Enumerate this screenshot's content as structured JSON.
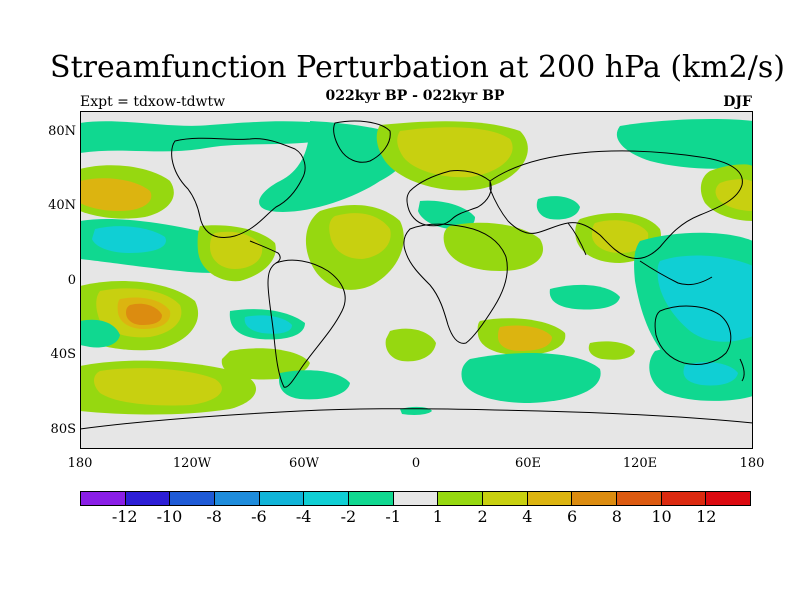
{
  "title": "Streamfunction Perturbation at 200 hPa (km2/s)",
  "subtitle": "022kyr BP - 022kyr BP",
  "experiment": "Expt = tdxow-tdwtw",
  "season": "DJF",
  "y_tick_labels": [
    "80N",
    "40N",
    "0",
    "40S",
    "80S"
  ],
  "x_tick_labels": [
    "180",
    "120W",
    "60W",
    "0",
    "60E",
    "120E",
    "180"
  ],
  "colorbar": {
    "labels": [
      "-12",
      "-10",
      "-8",
      "-6",
      "-4",
      "-2",
      "-1",
      "1",
      "2",
      "4",
      "6",
      "8",
      "10",
      "12"
    ],
    "colors": [
      "#8a1ee6",
      "#2d1ed6",
      "#1e5ad6",
      "#1e8cdc",
      "#10b4d8",
      "#10cfd4",
      "#10d890",
      "#e6e6e6",
      "#96d810",
      "#c8d010",
      "#dcb410",
      "#dc8c10",
      "#dc5a10",
      "#dc2a10",
      "#dc0a10"
    ]
  },
  "colors": {
    "land_sea_background": "#e6e6e6",
    "coastline": "#000000"
  }
}
